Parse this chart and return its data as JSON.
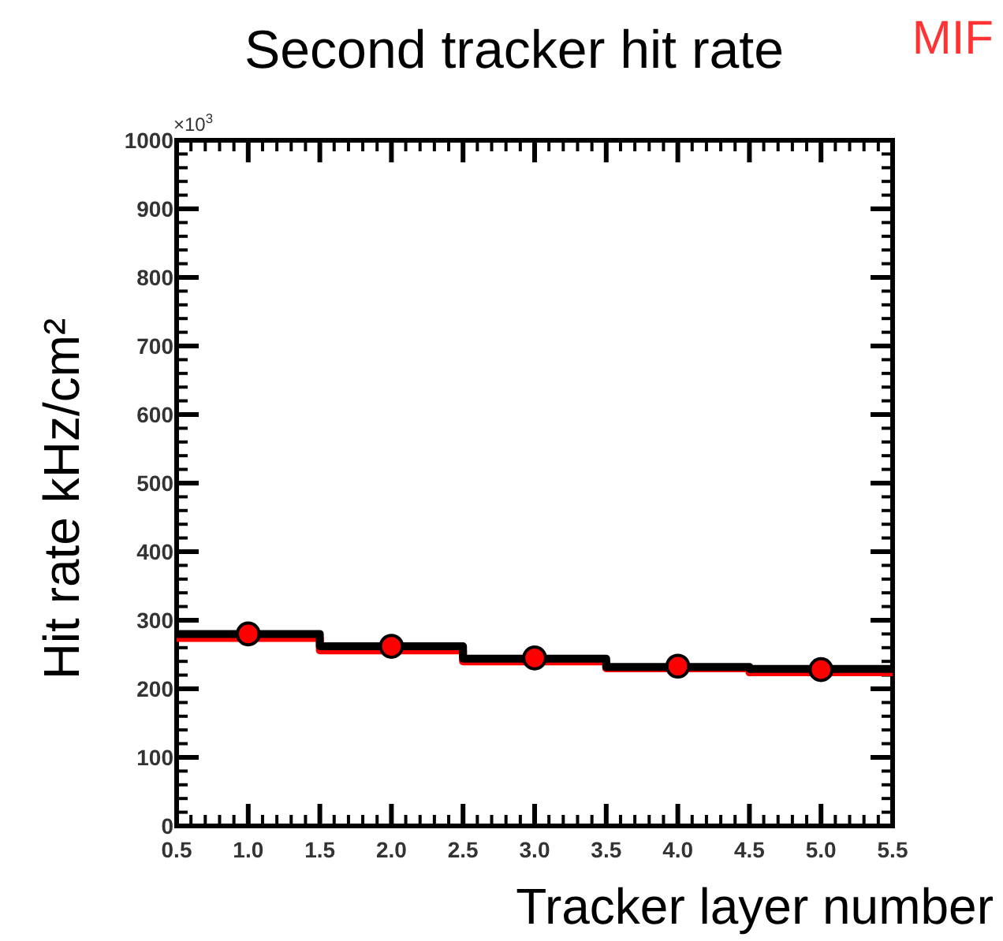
{
  "chart_data": {
    "type": "histogram",
    "bins": [
      0.5,
      1.5,
      2.5,
      3.5,
      4.5,
      5.5
    ],
    "title": "Second tracker hit rate",
    "xlabel": "Tracker layer number",
    "ylabel": "Hit rate kHz/cm²",
    "annotations": [
      "×10$^{3}$",
      "MIF"
    ],
    "xlim": [
      0.5,
      5.5
    ],
    "xticks": [
      {
        "value": 0.5,
        "label": "0.5"
      },
      {
        "value": 1,
        "label": "1.0"
      },
      {
        "value": 1.5,
        "label": "1.5"
      },
      {
        "value": 2,
        "label": "2.0"
      },
      {
        "value": 2.5,
        "label": "2.5"
      },
      {
        "value": 3,
        "label": "3.0"
      },
      {
        "value": 3.5,
        "label": "3.5"
      },
      {
        "value": 4,
        "label": "4.0"
      },
      {
        "value": 4.5,
        "label": "4.5"
      },
      {
        "value": 5,
        "label": "5.0"
      },
      {
        "value": 5.5,
        "label": "5.5"
      }
    ],
    "ylim": [
      0,
      1000
    ],
    "yticks": [
      0,
      100,
      200,
      300,
      400,
      500,
      600,
      700,
      800,
      900,
      1000
    ],
    "series": [
      {
        "color": "#ff0000",
        "values": [
          274,
          256,
          240,
          230,
          224
        ]
      },
      {
        "color": "#000000",
        "values": [
          280,
          262,
          244,
          232,
          229
        ]
      },
      {
        "type": "scatter",
        "x": [
          1,
          2,
          3,
          4,
          5
        ],
        "color": "#ff0000",
        "marker": "circle",
        "values": [
          280,
          262,
          245,
          233,
          228
        ]
      }
    ]
  }
}
